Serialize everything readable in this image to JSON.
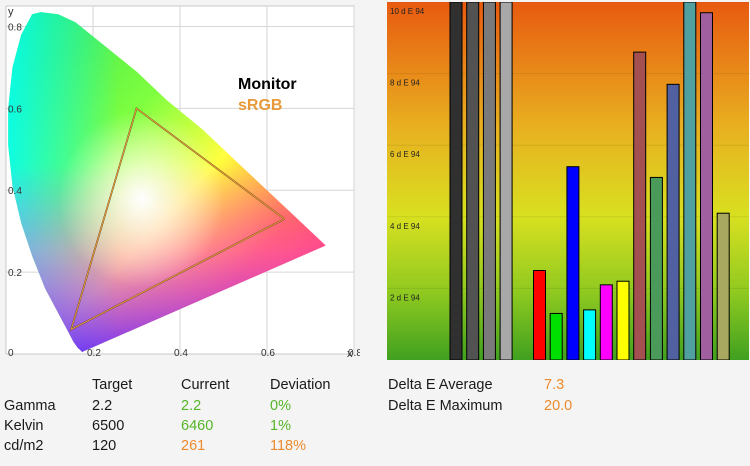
{
  "cie": {
    "y_axis_label": "y",
    "x_axis_label": "x",
    "x_ticks": [
      "0",
      "0.2",
      "0.4",
      "0.6",
      "0.8"
    ],
    "y_ticks": [
      "0.2",
      "0.4",
      "0.6",
      "0.8"
    ],
    "legend_monitor": "Monitor",
    "legend_srgb": "sRGB",
    "monitor_color": "#000000",
    "srgb_color": "#e89a3a"
  },
  "deltae": {
    "y_tick_labels": [
      "10 d E 94",
      "8 d E 94",
      "6 d E 94",
      "4 d E 94",
      "2 d E 94"
    ]
  },
  "table": {
    "headers": [
      "Target",
      "Current",
      "Deviation"
    ],
    "rows": [
      {
        "label": "Gamma",
        "target": "2.2",
        "current": "2.2",
        "deviation": "0%",
        "current_color": "#56b528",
        "deviation_color": "#56b528"
      },
      {
        "label": "Kelvin",
        "target": "6500",
        "current": "6460",
        "deviation": "1%",
        "current_color": "#56b528",
        "deviation_color": "#56b528"
      },
      {
        "label": "cd/m2",
        "target": "120",
        "current": "261",
        "deviation": "118%",
        "current_color": "#ec8a2e",
        "deviation_color": "#ec8a2e"
      }
    ]
  },
  "summary": {
    "avg_label": "Delta E Average",
    "avg_value": "7.3",
    "max_label": "Delta E Maximum",
    "max_value": "20.0"
  },
  "chart_data": [
    {
      "type": "scatter",
      "title": "",
      "xlabel": "x",
      "ylabel": "y",
      "xlim": [
        0,
        0.8
      ],
      "ylim": [
        0,
        0.85
      ],
      "series": [
        {
          "name": "Monitor",
          "color": "#000000",
          "x": [
            0.64,
            0.3,
            0.15,
            0.64
          ],
          "y": [
            0.33,
            0.6,
            0.06,
            0.33
          ]
        },
        {
          "name": "sRGB",
          "color": "#e89a3a",
          "x": [
            0.64,
            0.3,
            0.15,
            0.64
          ],
          "y": [
            0.33,
            0.6,
            0.06,
            0.33
          ]
        }
      ]
    },
    {
      "type": "bar",
      "title": "",
      "ylabel": "d E 94",
      "ylim": [
        0,
        10
      ],
      "values": [
        10,
        10,
        10,
        10,
        0,
        2.5,
        1.3,
        5.4,
        1.4,
        2.1,
        2.2,
        8.6,
        5.1,
        7.7,
        10,
        9.7,
        4.1
      ],
      "colors": [
        "#303030",
        "#525252",
        "#7a7a7a",
        "#a8a8a8",
        "none",
        "#ff0000",
        "#00e000",
        "#0000ff",
        "#00ffff",
        "#ff00ff",
        "#ffff00",
        "#a55050",
        "#4a9a5a",
        "#5060a0",
        "#50a0a0",
        "#a060a0",
        "#a8a860"
      ]
    }
  ]
}
